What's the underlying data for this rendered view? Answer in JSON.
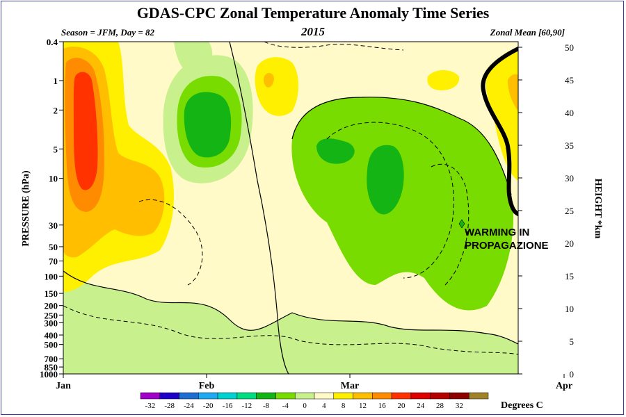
{
  "header": {
    "title": "GDAS-CPC Zonal Temperature Anomaly Time Series",
    "subtitle_year": "2015",
    "season_label": "Season = JFM, Day =  82",
    "zonal_label": "Zonal Mean [60,90]"
  },
  "annotation": {
    "line1": "WARMING IN",
    "line2": "PROPAGAZIONE"
  },
  "chart_data": {
    "type": "heatmap",
    "title": "GDAS-CPC Zonal Temperature Anomaly Time Series",
    "ylabel": "PRESSURE (hPa)",
    "y2label": "HEIGHT *km",
    "x_ticks": [
      "Jan",
      "Feb",
      "Mar",
      "Apr"
    ],
    "y_ticks": [
      "0.4",
      "1",
      "2",
      "5",
      "10",
      "30",
      "50",
      "70",
      "100",
      "150",
      "200",
      "250",
      "300",
      "400",
      "500",
      "700",
      "850",
      "1000"
    ],
    "y_log_scale": true,
    "ylim": [
      1000,
      0.4
    ],
    "y2_ticks": [
      "0",
      "5",
      "10",
      "15",
      "20",
      "25",
      "30",
      "35",
      "40",
      "45",
      "50"
    ],
    "y2lim": [
      0,
      50
    ],
    "colorbar": {
      "label": "Degrees C",
      "ticks": [
        "-32",
        "-28",
        "-24",
        "-20",
        "-16",
        "-12",
        "-8",
        "-4",
        "0",
        "4",
        "8",
        "12",
        "16",
        "20",
        "24",
        "28",
        "32"
      ],
      "colors": [
        "#a000c8",
        "#1e00c8",
        "#1e6ed2",
        "#1eaaf0",
        "#00d2d2",
        "#00dc82",
        "#14b414",
        "#78dc00",
        "#c8f08c",
        "#fffac8",
        "#fff000",
        "#ffbe00",
        "#ff8c00",
        "#ff3200",
        "#dc0000",
        "#b40000",
        "#8c0000",
        "#a08228"
      ]
    },
    "data_extent_day": 82,
    "regions": [
      {
        "name": "early-jan-stratospheric-warm-anomaly",
        "time_range": [
          "Jan 2",
          "Jan 10"
        ],
        "pressure_range_hPa": [
          0.4,
          30
        ],
        "peak_degC": "16 to 20"
      },
      {
        "name": "mid-jan-warm-lobe",
        "time_range": [
          "Jan 5",
          "Jan 17"
        ],
        "pressure_range_hPa": [
          7,
          50
        ],
        "peak_degC": "8 to 12"
      },
      {
        "name": "late-jan-cold-anomaly",
        "time_range": [
          "Jan 20",
          "Feb 1"
        ],
        "pressure_range_hPa": [
          1,
          7
        ],
        "peak_degC": "-8 to -12"
      },
      {
        "name": "early-feb-upper-warm-patch",
        "time_range": [
          "Feb 3",
          "Feb 10"
        ],
        "pressure_range_hPa": [
          0.6,
          2
        ],
        "peak_degC": "4 to 8"
      },
      {
        "name": "march-cold-anomaly",
        "time_range": [
          "Feb 15",
          "Mar 25"
        ],
        "pressure_range_hPa": [
          1.5,
          250
        ],
        "peak_degC": "-8 to -12"
      },
      {
        "name": "late-march-warming",
        "time_range": [
          "Mar 18",
          "Mar 23"
        ],
        "pressure_range_hPa": [
          0.4,
          5
        ],
        "peak_degC": "4 to 8"
      }
    ]
  }
}
